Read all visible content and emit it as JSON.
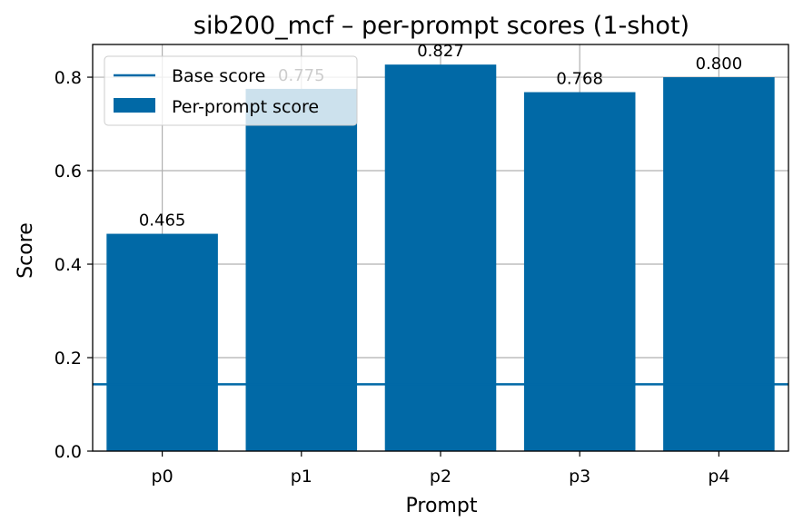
{
  "chart_data": {
    "type": "bar",
    "title": "sib200_mcf – per-prompt scores (1-shot)",
    "xlabel": "Prompt",
    "ylabel": "Score",
    "categories": [
      "p0",
      "p1",
      "p2",
      "p3",
      "p4"
    ],
    "series": [
      {
        "name": "Per-prompt score",
        "values": [
          0.465,
          0.775,
          0.827,
          0.768,
          0.8
        ],
        "labels": [
          "0.465",
          "0.775",
          "0.827",
          "0.768",
          "0.800"
        ]
      }
    ],
    "base_score": {
      "name": "Base score",
      "value": 0.143
    },
    "ylim": [
      0,
      0.87
    ],
    "yticks": [
      "0.0",
      "0.2",
      "0.4",
      "0.6",
      "0.8"
    ],
    "grid": true,
    "legend_position": "top-left",
    "colors": {
      "bar": "#0169a6",
      "base_line": "#0169a6",
      "grid": "#b0b0b0"
    }
  }
}
